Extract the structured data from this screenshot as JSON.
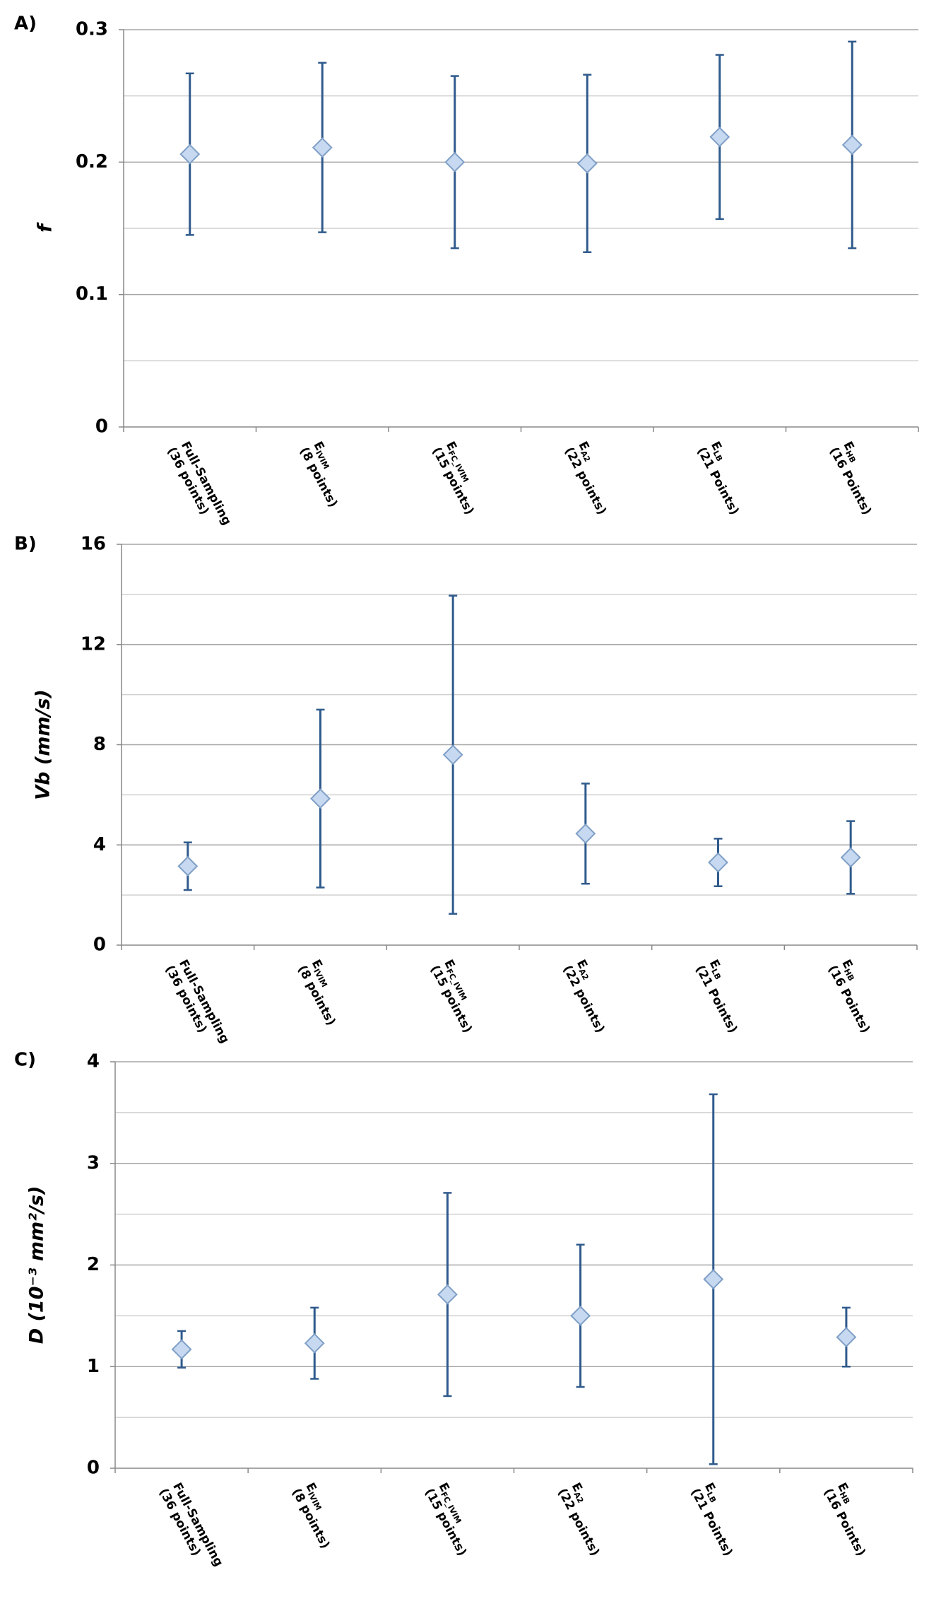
{
  "chart_data": [
    {
      "type": "scatter",
      "panel_label": "A)",
      "y_label": "f",
      "categories": [
        {
          "main": "Full-Sampling",
          "note": "(36 points)"
        },
        {
          "main": "E",
          "sub": "IVIM",
          "note": "(8 points)"
        },
        {
          "main": "E",
          "sub": "FC_IVIM",
          "note": "(15 points)"
        },
        {
          "main": "E",
          "sub": "A2",
          "note": "(22 points)"
        },
        {
          "main": "E",
          "sub": "LB",
          "note": "(21 Points)"
        },
        {
          "main": "E",
          "sub": "HB",
          "note": "(16 Points)"
        }
      ],
      "values": [
        0.206,
        0.211,
        0.2,
        0.199,
        0.219,
        0.213
      ],
      "errors": [
        0.061,
        0.064,
        0.065,
        0.067,
        0.062,
        0.078
      ],
      "color": "#2f5a8c",
      "marker_color": "#c6d9f1",
      "ylim": [
        0,
        0.3
      ],
      "yticks": [
        0,
        0.1,
        0.2,
        0.3
      ],
      "minor_grid": [
        0.05,
        0.15,
        0.25
      ],
      "grid": true
    },
    {
      "type": "scatter",
      "panel_label": "B)",
      "y_label": "Vb (mm/s)",
      "categories": [
        {
          "main": "Full-Sampling",
          "note": "(36 points)"
        },
        {
          "main": "E",
          "sub": "IVIM",
          "note": "(8 points)"
        },
        {
          "main": "E",
          "sub": "FC_IVIM",
          "note": "(15 points)"
        },
        {
          "main": "E",
          "sub": "A2",
          "note": "(22 points)"
        },
        {
          "main": "E",
          "sub": "LB",
          "note": "(21 Points)"
        },
        {
          "main": "E",
          "sub": "HB",
          "note": "(16 Points)"
        }
      ],
      "values": [
        3.15,
        5.85,
        7.6,
        4.45,
        3.3,
        3.5
      ],
      "errors": [
        0.95,
        3.55,
        6.35,
        2.0,
        0.95,
        1.45
      ],
      "color": "#2f5a8c",
      "marker_color": "#c6d9f1",
      "ylim": [
        0,
        16
      ],
      "yticks": [
        0,
        4,
        8,
        12,
        16
      ],
      "minor_grid": [
        2,
        6,
        10,
        14
      ],
      "grid": true
    },
    {
      "type": "scatter",
      "panel_label": "C)",
      "y_label": "D (10⁻³ mm²/s)",
      "categories": [
        {
          "main": "Full-Sampling",
          "note": "(36 points)"
        },
        {
          "main": "E",
          "sub": "IVIM",
          "note": "(8 points)"
        },
        {
          "main": "E",
          "sub": "FC_IVIM",
          "note": "(15 points)"
        },
        {
          "main": "E",
          "sub": "A2",
          "note": "(22 points)"
        },
        {
          "main": "E",
          "sub": "LB",
          "note": "(21 Points)"
        },
        {
          "main": "E",
          "sub": "HB",
          "note": "(16 Points)"
        }
      ],
      "values": [
        1.17,
        1.23,
        1.71,
        1.5,
        1.86,
        1.29
      ],
      "errors": [
        0.18,
        0.35,
        1.0,
        0.7,
        1.82,
        0.29
      ],
      "color": "#2f5a8c",
      "marker_color": "#c6d9f1",
      "ylim": [
        0,
        4
      ],
      "yticks": [
        0,
        1,
        2,
        3,
        4
      ],
      "minor_grid": [
        0.5,
        1.5,
        2.5,
        3.5
      ],
      "grid": true
    }
  ]
}
